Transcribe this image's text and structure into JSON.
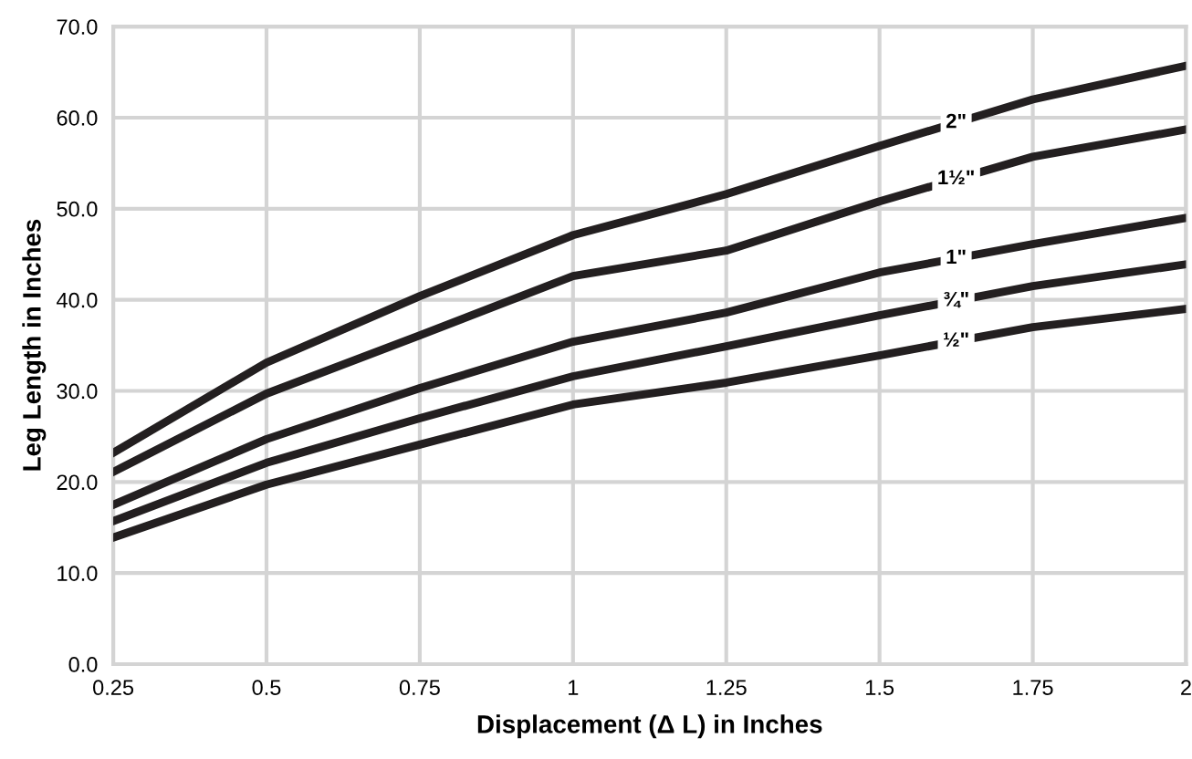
{
  "chart_data": {
    "type": "line",
    "xlabel": "Displacement (Δ L) in Inches",
    "ylabel": "Leg Length in Inches",
    "x": [
      0.25,
      0.5,
      0.75,
      1,
      1.25,
      1.5,
      1.75,
      2
    ],
    "series": [
      {
        "name": "2\"",
        "color": "#231f20",
        "values": [
          23.2,
          33.1,
          40.4,
          47.1,
          51.6,
          56.9,
          62.0,
          65.7
        ]
      },
      {
        "name": "1½\"",
        "color": "#231f20",
        "values": [
          21.1,
          29.7,
          36.1,
          42.6,
          45.4,
          50.8,
          55.7,
          58.7
        ]
      },
      {
        "name": "1\"",
        "color": "#231f20",
        "values": [
          17.5,
          24.7,
          30.3,
          35.4,
          38.6,
          43.0,
          46.1,
          49.0
        ]
      },
      {
        "name": "¾\"",
        "color": "#231f20",
        "values": [
          15.7,
          22.1,
          27.0,
          31.6,
          34.9,
          38.3,
          41.5,
          43.9
        ]
      },
      {
        "name": "½\"",
        "color": "#231f20",
        "values": [
          13.9,
          19.7,
          24.1,
          28.5,
          30.9,
          33.9,
          37.0,
          39.0
        ]
      }
    ],
    "xlim": [
      0.25,
      2
    ],
    "ylim": [
      0,
      70
    ],
    "xticks": [
      0.25,
      0.5,
      0.75,
      1,
      1.25,
      1.5,
      1.75,
      2
    ],
    "yticks": [
      {
        "value": 0,
        "label": "0.0"
      },
      {
        "value": 10,
        "label": "10.0"
      },
      {
        "value": 20,
        "label": "20.0"
      },
      {
        "value": 30,
        "label": "30.0"
      },
      {
        "value": 40,
        "label": "40.0"
      },
      {
        "value": 50,
        "label": "50.0"
      },
      {
        "value": 60,
        "label": "60.0"
      },
      {
        "value": 70,
        "label": "70.0"
      }
    ],
    "grid": true,
    "marker": "none",
    "line_style": "solid",
    "legend": false
  }
}
